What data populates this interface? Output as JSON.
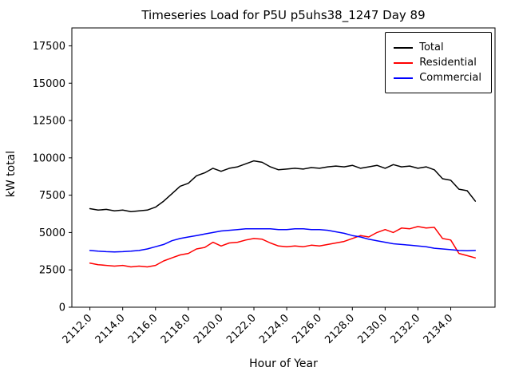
{
  "figure": {
    "title": "Timeseries Load for P5U p5uhs38_1247  Day 89",
    "xlabel": "Hour of Year",
    "ylabel": "kW total"
  },
  "chart_data": {
    "type": "line",
    "title": "Timeseries Load for P5U p5uhs38_1247  Day 89",
    "xlabel": "Hour of Year",
    "ylabel": "kW total",
    "xlim": [
      2110.9,
      2136.7
    ],
    "ylim": [
      0,
      18700
    ],
    "grid": false,
    "legend_position": "upper right",
    "xtick_values": [
      2112,
      2114,
      2116,
      2118,
      2120,
      2122,
      2124,
      2126,
      2128,
      2130,
      2132,
      2134
    ],
    "xtick_labels": [
      "2112.0",
      "2114.0",
      "2116.0",
      "2118.0",
      "2120.0",
      "2122.0",
      "2124.0",
      "2126.0",
      "2128.0",
      "2130.0",
      "2132.0",
      "2134.0"
    ],
    "ytick_values": [
      0,
      2500,
      5000,
      7500,
      10000,
      12500,
      15000,
      17500
    ],
    "ytick_labels": [
      "0",
      "2500",
      "5000",
      "7500",
      "10000",
      "12500",
      "15000",
      "17500"
    ],
    "x": [
      2112,
      2112.5,
      2113,
      2113.5,
      2114,
      2114.5,
      2115,
      2115.5,
      2116,
      2116.5,
      2117,
      2117.5,
      2118,
      2118.5,
      2119,
      2119.5,
      2120,
      2120.5,
      2121,
      2121.5,
      2122,
      2122.5,
      2123,
      2123.5,
      2124,
      2124.5,
      2125,
      2125.5,
      2126,
      2126.5,
      2127,
      2127.5,
      2128,
      2128.5,
      2129,
      2129.5,
      2130,
      2130.5,
      2131,
      2131.5,
      2132,
      2132.5,
      2133,
      2133.5,
      2134,
      2134.5,
      2135,
      2135.5
    ],
    "series": [
      {
        "name": "Total",
        "color": "#000000",
        "values": [
          6600,
          6500,
          6550,
          6450,
          6500,
          6400,
          6450,
          6500,
          6700,
          7100,
          7600,
          8100,
          8300,
          8800,
          9000,
          9300,
          9100,
          9300,
          9400,
          9600,
          9800,
          9700,
          9400,
          9200,
          9250,
          9300,
          9250,
          9350,
          9300,
          9400,
          9450,
          9400,
          9500,
          9300,
          9400,
          9500,
          9300,
          9550,
          9400,
          9450,
          9300,
          9400,
          9200,
          8600,
          8500,
          7900,
          7800,
          7100
        ]
      },
      {
        "name": "Residential",
        "color": "#ff0000",
        "values": [
          2950,
          2850,
          2800,
          2750,
          2800,
          2700,
          2750,
          2700,
          2800,
          3100,
          3300,
          3500,
          3600,
          3900,
          4000,
          4350,
          4100,
          4300,
          4350,
          4500,
          4600,
          4550,
          4300,
          4100,
          4050,
          4100,
          4050,
          4150,
          4100,
          4200,
          4300,
          4400,
          4600,
          4800,
          4700,
          5000,
          5200,
          5000,
          5300,
          5250,
          5400,
          5300,
          5350,
          4600,
          4500,
          3600,
          3450,
          3300
        ]
      },
      {
        "name": "Commercial",
        "color": "#0000ff",
        "values": [
          3800,
          3750,
          3720,
          3700,
          3720,
          3750,
          3800,
          3900,
          4050,
          4200,
          4450,
          4600,
          4700,
          4800,
          4900,
          5000,
          5100,
          5150,
          5200,
          5250,
          5250,
          5250,
          5250,
          5200,
          5200,
          5250,
          5250,
          5200,
          5200,
          5150,
          5050,
          4950,
          4800,
          4700,
          4550,
          4450,
          4350,
          4250,
          4200,
          4150,
          4100,
          4050,
          3950,
          3900,
          3850,
          3800,
          3780,
          3800
        ]
      }
    ]
  }
}
